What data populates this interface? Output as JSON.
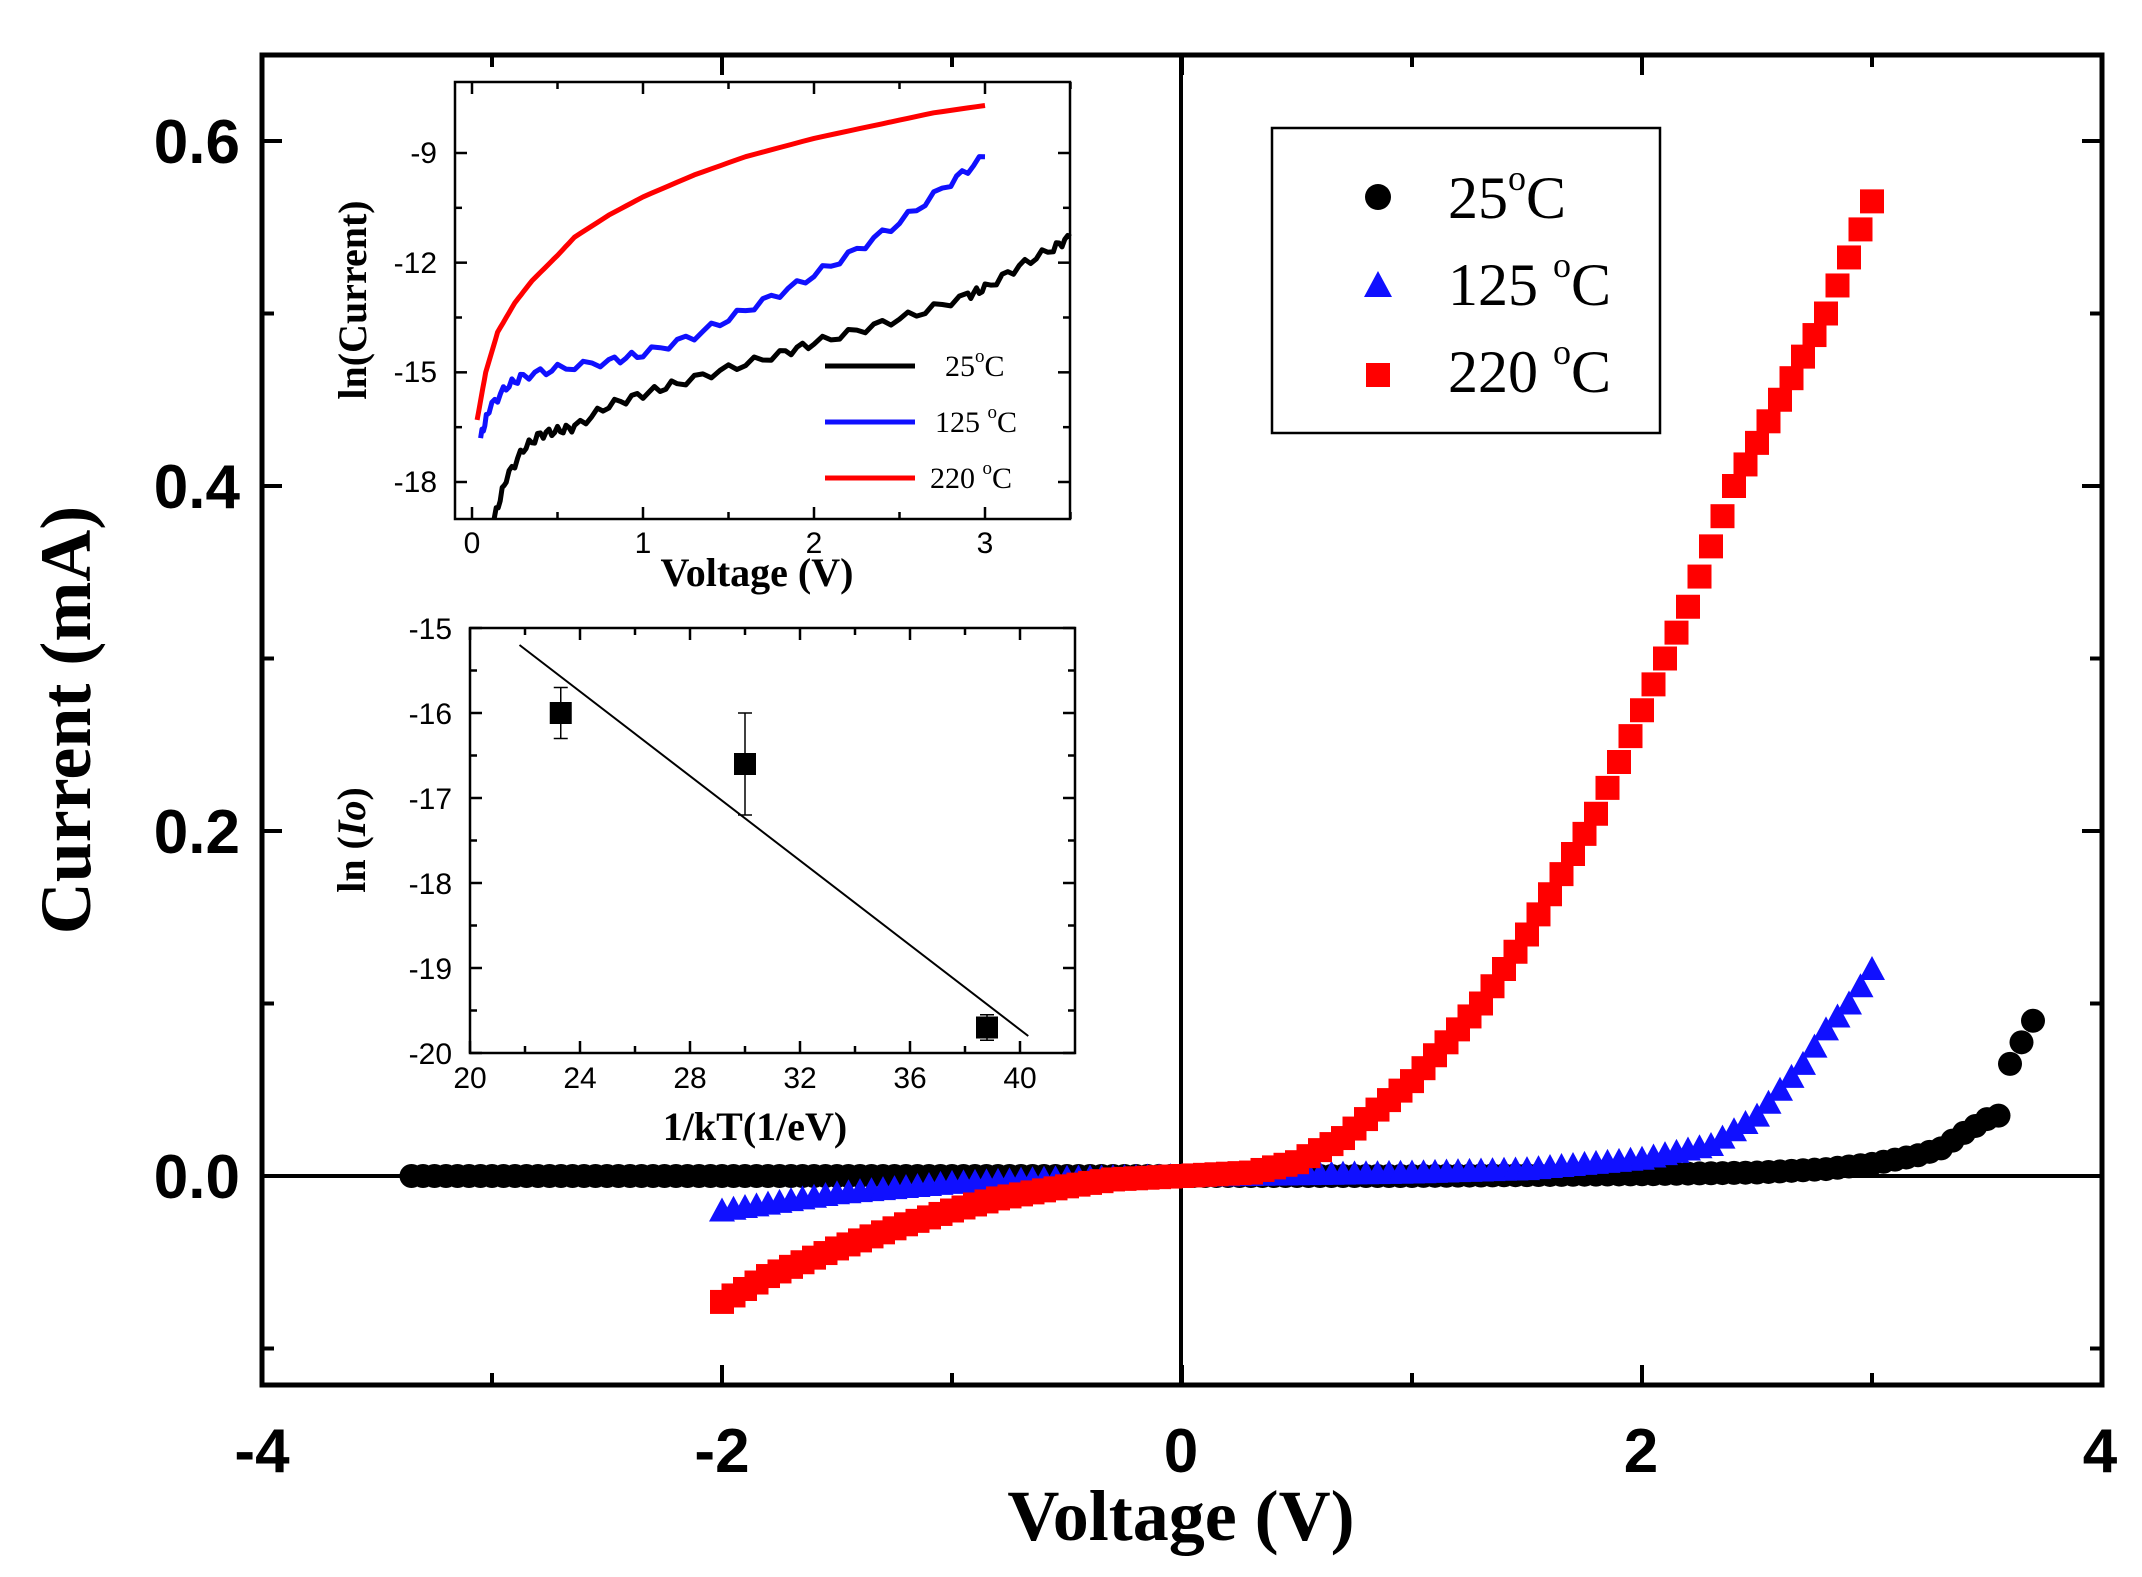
{
  "chart_data": [
    {
      "type": "scatter",
      "title": "",
      "xlabel": "Voltage (V)",
      "ylabel": "Current (mA)",
      "xlim": [
        -4,
        4
      ],
      "ylim": [
        -0.12,
        0.65
      ],
      "xticks": [
        "-4",
        "-2",
        "0",
        "2",
        "4"
      ],
      "yticks": [
        "0.0",
        "0.2",
        "0.4",
        "0.6"
      ],
      "legend_position": "top-right",
      "series": [
        {
          "name": "25°C",
          "label_main": "25",
          "label_sup": "o",
          "label_suffix": "C",
          "marker": "circle",
          "color": "#000000",
          "x_range": [
            -3.35,
            3.7
          ],
          "points": [
            [
              -3.35,
              0.0
            ],
            [
              0.0,
              0.0
            ],
            [
              1.0,
              0.0
            ],
            [
              2.0,
              0.001
            ],
            [
              2.5,
              0.002
            ],
            [
              2.8,
              0.004
            ],
            [
              3.0,
              0.007
            ],
            [
              3.2,
              0.012
            ],
            [
              3.3,
              0.016
            ],
            [
              3.4,
              0.025
            ],
            [
              3.5,
              0.033
            ],
            [
              3.55,
              0.035
            ],
            [
              3.6,
              0.065
            ],
            [
              3.7,
              0.09
            ]
          ]
        },
        {
          "name": "125 °C",
          "label_main": "125 ",
          "label_sup": "o",
          "label_suffix": "C",
          "marker": "triangle",
          "color": "#1010ff",
          "x_range": [
            -2.0,
            3.0
          ],
          "points": [
            [
              -2.0,
              -0.02
            ],
            [
              -1.5,
              -0.01
            ],
            [
              -1.0,
              -0.004
            ],
            [
              -0.5,
              -0.001
            ],
            [
              0.0,
              0.0
            ],
            [
              1.0,
              0.002
            ],
            [
              1.5,
              0.004
            ],
            [
              2.0,
              0.01
            ],
            [
              2.3,
              0.018
            ],
            [
              2.5,
              0.035
            ],
            [
              2.6,
              0.05
            ],
            [
              2.7,
              0.065
            ],
            [
              2.8,
              0.085
            ],
            [
              2.9,
              0.1
            ],
            [
              3.0,
              0.12
            ]
          ]
        },
        {
          "name": "220 °C",
          "label_main": "220 ",
          "label_sup": "o",
          "label_suffix": "C",
          "marker": "square",
          "color": "#ff0000",
          "x_range": [
            -2.0,
            3.0
          ],
          "points": [
            [
              -2.0,
              -0.073
            ],
            [
              -1.8,
              -0.058
            ],
            [
              -1.5,
              -0.042
            ],
            [
              -1.2,
              -0.028
            ],
            [
              -1.0,
              -0.02
            ],
            [
              -0.8,
              -0.013
            ],
            [
              -0.5,
              -0.006
            ],
            [
              -0.3,
              -0.002
            ],
            [
              0.0,
              0.0
            ],
            [
              0.3,
              0.002
            ],
            [
              0.5,
              0.008
            ],
            [
              0.7,
              0.022
            ],
            [
              1.0,
              0.055
            ],
            [
              1.3,
              0.1
            ],
            [
              1.5,
              0.14
            ],
            [
              1.8,
              0.21
            ],
            [
              2.0,
              0.27
            ],
            [
              2.2,
              0.33
            ],
            [
              2.4,
              0.4
            ],
            [
              2.6,
              0.45
            ],
            [
              2.8,
              0.5
            ],
            [
              3.0,
              0.565
            ]
          ]
        }
      ]
    },
    {
      "type": "line",
      "title": "",
      "xlabel": "Voltage (V)",
      "ylabel": "ln(Current)",
      "xlim": [
        -0.1,
        3.5
      ],
      "ylim": [
        -19.2,
        -7.2
      ],
      "xticks": [
        "0",
        "1",
        "2",
        "3"
      ],
      "yticks": [
        "-9",
        "-12",
        "-15",
        "-18"
      ],
      "legend_position": "bottom-right",
      "series": [
        {
          "name": "25°C",
          "label_main": "25",
          "label_sup": "o",
          "label_suffix": "C",
          "color": "#000000",
          "points": [
            [
              0.13,
              -19.0
            ],
            [
              0.2,
              -17.9
            ],
            [
              0.3,
              -17.1
            ],
            [
              0.4,
              -16.7
            ],
            [
              0.5,
              -16.6
            ],
            [
              0.6,
              -16.5
            ],
            [
              0.8,
              -15.9
            ],
            [
              1.0,
              -15.6
            ],
            [
              1.2,
              -15.3
            ],
            [
              1.5,
              -14.9
            ],
            [
              1.8,
              -14.5
            ],
            [
              2.0,
              -14.2
            ],
            [
              2.3,
              -13.8
            ],
            [
              2.6,
              -13.4
            ],
            [
              2.9,
              -12.9
            ],
            [
              3.0,
              -12.7
            ],
            [
              3.2,
              -12.1
            ],
            [
              3.4,
              -11.6
            ],
            [
              3.5,
              -11.3
            ]
          ]
        },
        {
          "name": "125 °C",
          "label_main": "125 ",
          "label_sup": "o",
          "label_suffix": "C",
          "color": "#1010ff",
          "points": [
            [
              0.05,
              -16.8
            ],
            [
              0.1,
              -16.0
            ],
            [
              0.2,
              -15.4
            ],
            [
              0.3,
              -15.1
            ],
            [
              0.5,
              -14.9
            ],
            [
              0.8,
              -14.7
            ],
            [
              1.0,
              -14.5
            ],
            [
              1.3,
              -14.0
            ],
            [
              1.6,
              -13.3
            ],
            [
              1.9,
              -12.6
            ],
            [
              2.2,
              -11.8
            ],
            [
              2.5,
              -10.9
            ],
            [
              2.8,
              -9.8
            ],
            [
              3.0,
              -9.1
            ]
          ]
        },
        {
          "name": "220 °C",
          "label_main": "220 ",
          "label_sup": "o",
          "label_suffix": "C",
          "color": "#ff0000",
          "points": [
            [
              0.03,
              -16.3
            ],
            [
              0.08,
              -15.0
            ],
            [
              0.15,
              -13.9
            ],
            [
              0.25,
              -13.1
            ],
            [
              0.35,
              -12.5
            ],
            [
              0.5,
              -11.8
            ],
            [
              0.6,
              -11.3
            ],
            [
              0.8,
              -10.7
            ],
            [
              1.0,
              -10.2
            ],
            [
              1.3,
              -9.6
            ],
            [
              1.6,
              -9.1
            ],
            [
              2.0,
              -8.6
            ],
            [
              2.4,
              -8.2
            ],
            [
              2.7,
              -7.9
            ],
            [
              3.0,
              -7.7
            ]
          ]
        }
      ]
    },
    {
      "type": "scatter",
      "title": "",
      "xlabel": "1/kT(1/eV)",
      "ylabel_main": "ln",
      "ylabel_italic": "Io",
      "xlim": [
        20,
        42
      ],
      "ylim": [
        -20,
        -15
      ],
      "xticks": [
        "20",
        "24",
        "28",
        "32",
        "36",
        "40"
      ],
      "yticks": [
        "-15",
        "-16",
        "-17",
        "-18",
        "-19",
        "-20"
      ],
      "points": [
        {
          "x": 23.3,
          "y": -16.0,
          "err": 0.3
        },
        {
          "x": 30.0,
          "y": -16.6,
          "err": 0.6
        },
        {
          "x": 38.8,
          "y": -19.7,
          "err": 0.15
        }
      ],
      "fit_line": {
        "x": [
          21.8,
          40.3
        ],
        "y": [
          -15.2,
          -19.8
        ]
      }
    }
  ]
}
